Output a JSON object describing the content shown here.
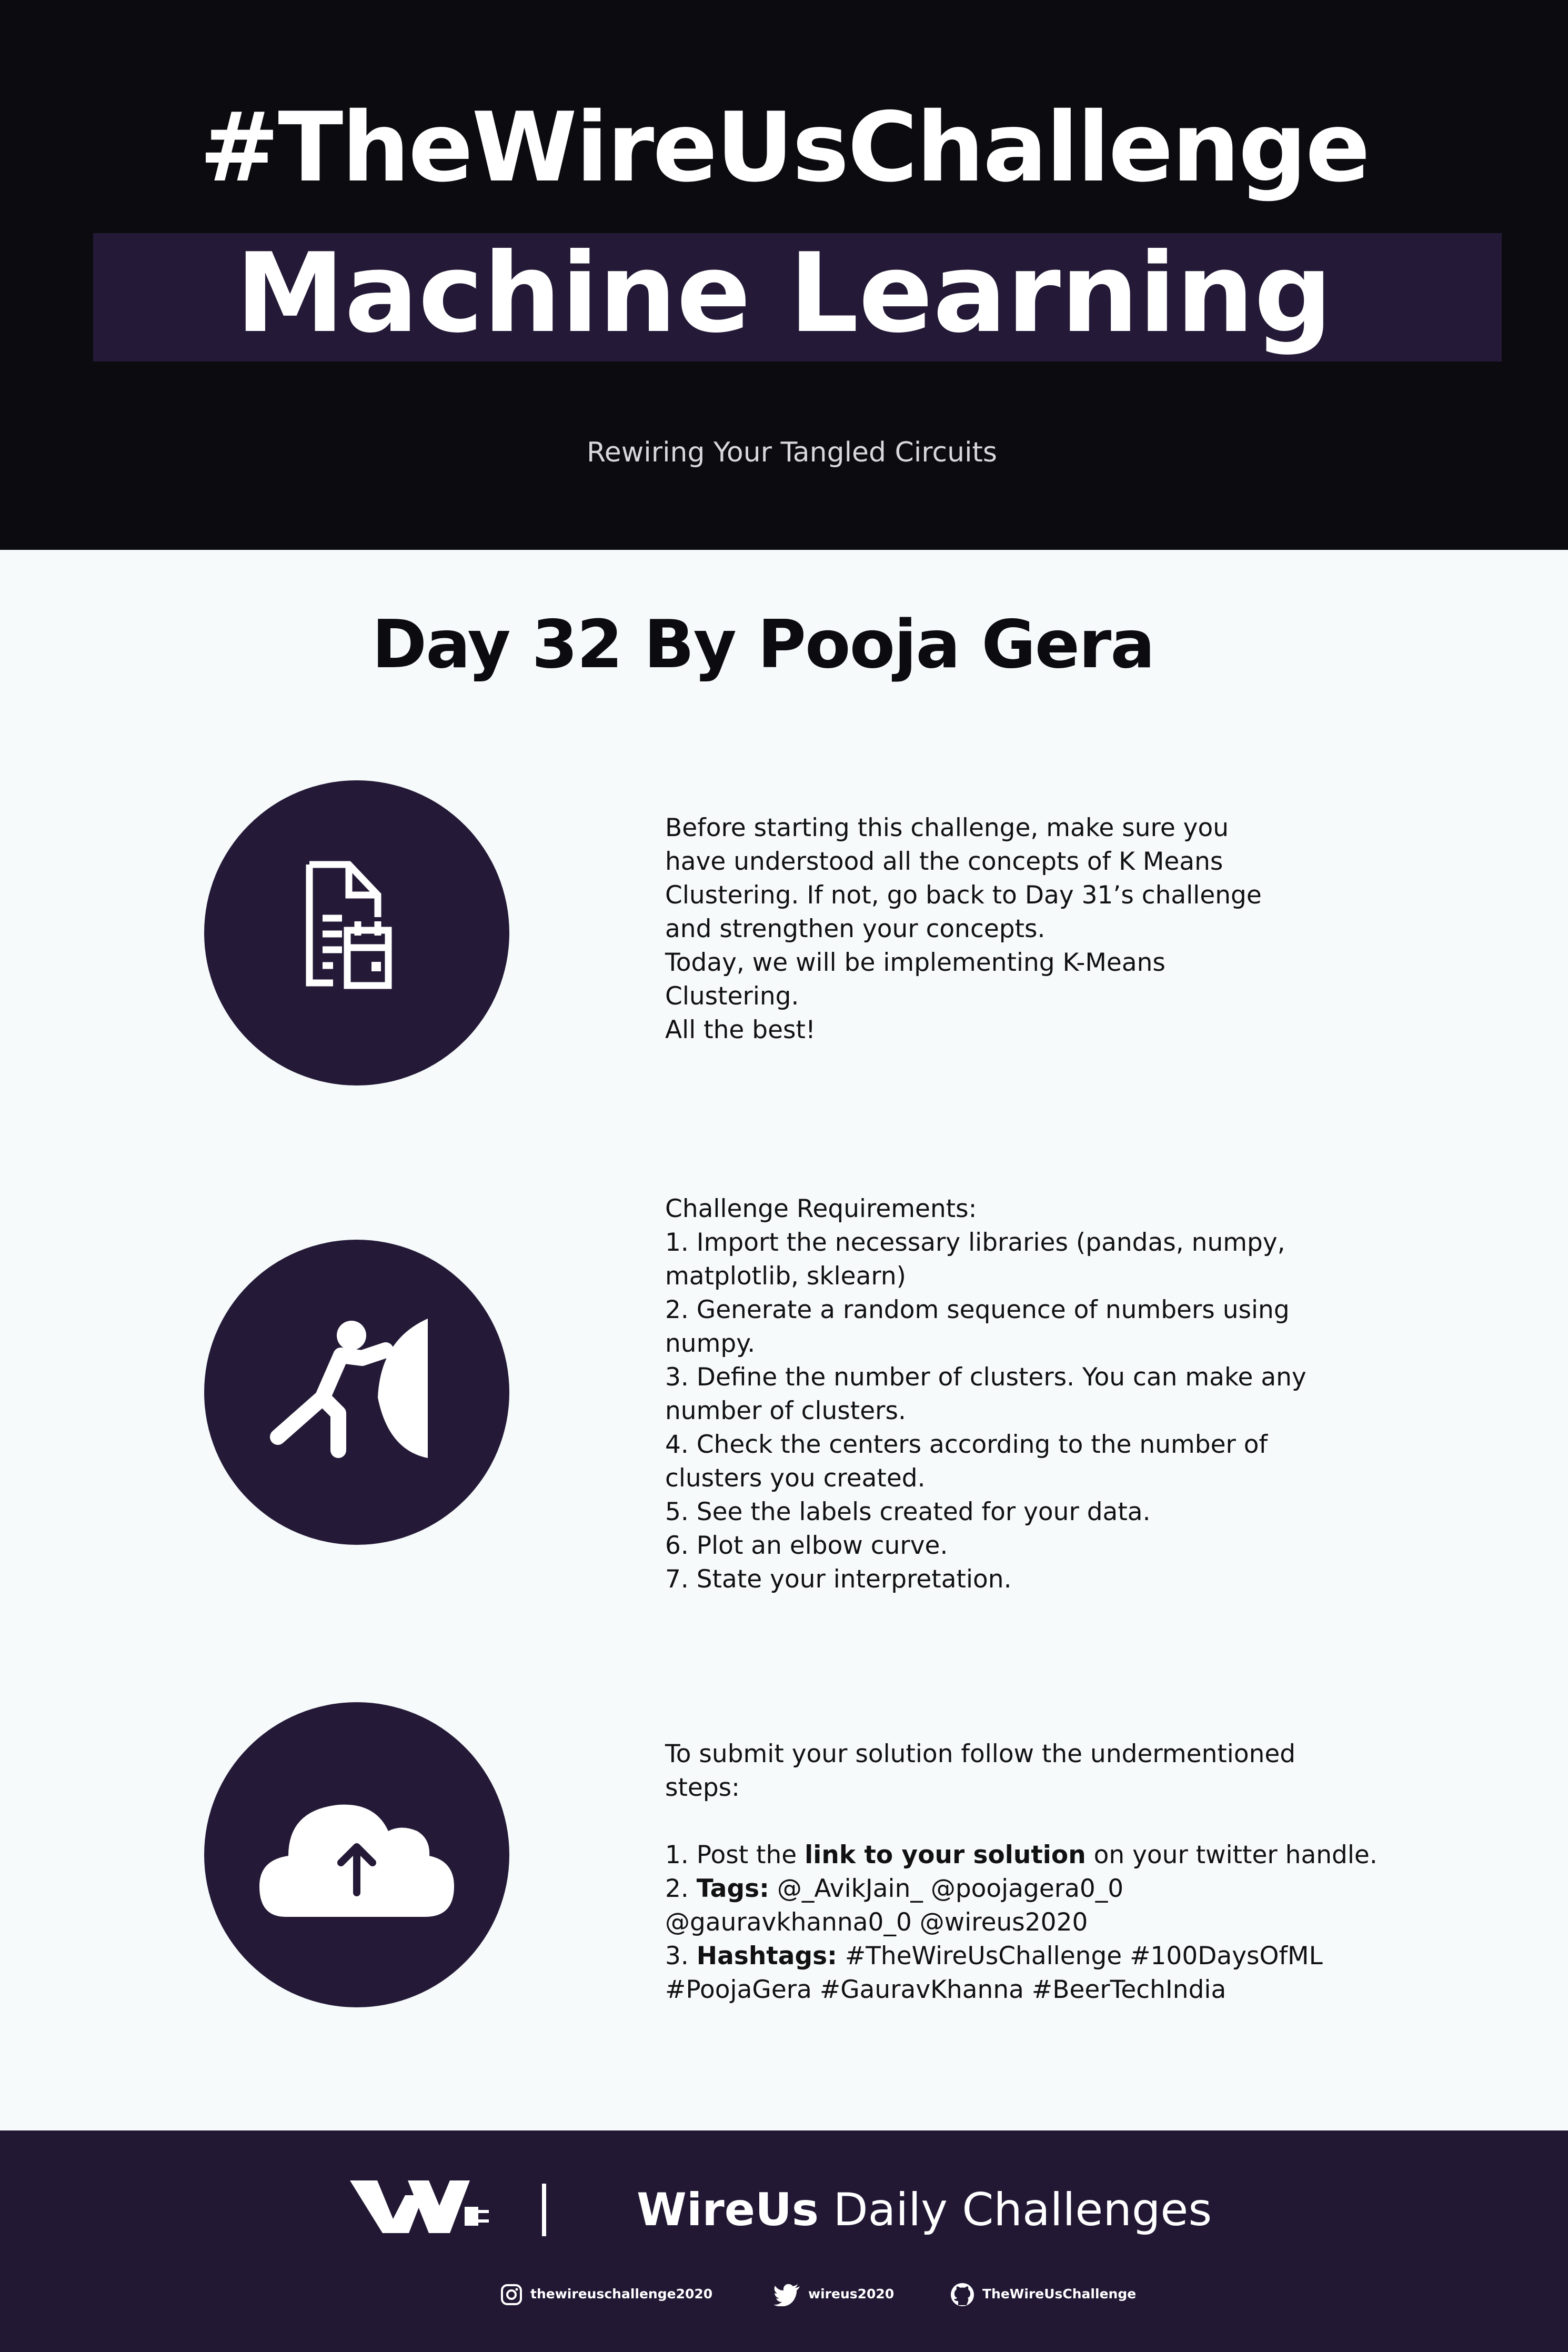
{
  "header": {
    "title": "#TheWireUsChallenge",
    "subtitle": "Machine Learning",
    "tagline": "Rewiring Your Tangled Circuits"
  },
  "day_title": "Day 32 By Pooja Gera",
  "sections": [
    {
      "icon": "document-calendar-icon",
      "text": "Before starting this challenge, make sure you\nhave understood all the concepts of K Means\nClustering. If not, go back to Day 31’s challenge\nand strengthen your concepts.\nToday, we will be implementing K-Means\nClustering.\nAll the best!"
    },
    {
      "icon": "person-pushing-wall-icon",
      "text": "Challenge Requirements:\n1. Import the necessary libraries (pandas, numpy,\nmatplotlib, sklearn)\n2. Generate a random sequence of numbers using\nnumpy.\n3. Define the number of clusters. You can make any\nnumber of clusters.\n4. Check the centers according to the number of\nclusters you created.\n5. See the labels created for your data.\n6. Plot an elbow curve.\n7. State your interpretation."
    },
    {
      "icon": "cloud-upload-icon",
      "intro": "To submit your solution follow the undermentioned\nsteps:",
      "step1_prefix": "1. Post the ",
      "step1_bold": "link to your solution",
      "step1_suffix": " on your twitter handle.",
      "step2_label": "2. ",
      "step2_bold": "Tags:",
      "step2_text": " @_AvikJain_ @poojagera0_0\n@gauravkhanna0_0 @wireus2020",
      "step3_label": "3. ",
      "step3_bold": "Hashtags:",
      "step3_text": " #TheWireUsChallenge #100DaysOfML\n#PoojaGera #GauravKhanna #BeerTechIndia"
    }
  ],
  "footer": {
    "brand_bold": "WireUs",
    "brand_rest": " Daily Challenges",
    "instagram": "thewireuschallenge2020",
    "twitter": "wireus2020",
    "github": "TheWireUsChallenge"
  },
  "colors": {
    "header_bg": "#0c0b10",
    "accent": "#241a37",
    "page_bg": "#f6fafb"
  }
}
